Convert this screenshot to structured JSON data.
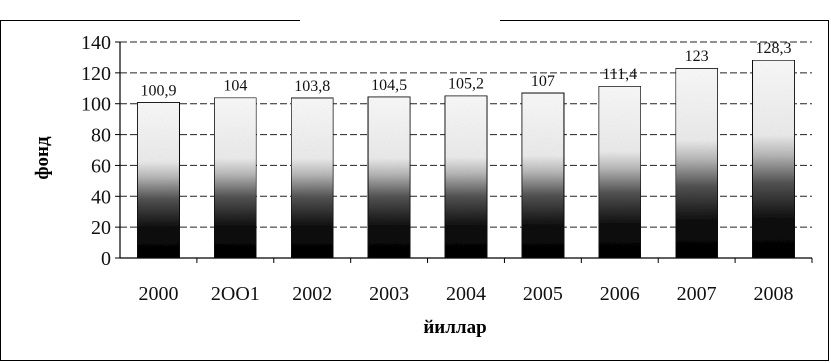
{
  "chart_data": {
    "type": "bar",
    "title": "",
    "xlabel": "йиллар",
    "ylabel": "фонд",
    "categories": [
      "2000",
      "2001",
      "2002",
      "2003",
      "2004",
      "2005",
      "2006",
      "2007",
      "2008"
    ],
    "tick_labels": [
      "2000",
      "2OO1",
      "2002",
      "2003",
      "2004",
      "2005",
      "2006",
      "2007",
      "2008"
    ],
    "values": [
      100.9,
      104,
      103.8,
      104.5,
      105.2,
      107,
      111.4,
      123,
      128.3
    ],
    "data_labels": [
      "100,9",
      "104",
      "103,8",
      "104,5",
      "105,2",
      "107",
      "111,4",
      "123",
      "128,3"
    ],
    "ylim": [
      0,
      140
    ],
    "yticks": [
      0,
      20,
      40,
      60,
      80,
      100,
      120,
      140
    ],
    "grid": true,
    "legend": "none",
    "bar_fill": "gradient black-to-white",
    "colors": {
      "bar_dark": "#000000",
      "bar_light": "#ffffff",
      "grid": "#222222"
    }
  }
}
